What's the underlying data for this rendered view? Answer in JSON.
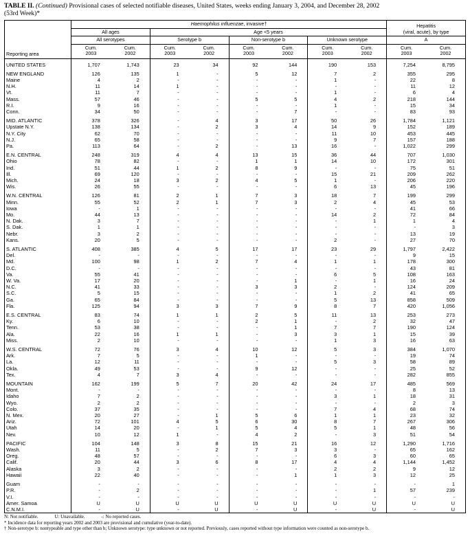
{
  "title": {
    "bold": "TABLE II.",
    "italic": "(Continued)",
    "rest": "Provisional cases of selected notifiable diseases, United States, weeks ending January 3, 2004, and December 28, 2002",
    "line2": "(53rd Week)*"
  },
  "columns": {
    "reporting_area": "Reporting area",
    "haemophilus_italic": "Haemophilus influenzae",
    "haemophilus_rest": ", invasive†",
    "hepatitis_line1": "Hepatitis",
    "hepatitis_line2": "(viral, acute), by type",
    "all_ages": "All ages",
    "age_under5": "Age <5 years",
    "all_serotypes": "All serotypes",
    "serotype_b": "Serotype b",
    "non_serotype_b": "Non-serotype b",
    "unknown_serotype": "Unknown serotype",
    "hep_a": "A",
    "cum_label": "Cum.",
    "year_2003": "2003",
    "year_2002": "2002"
  },
  "table": {
    "rows": [
      {
        "a": "UNITED STATES",
        "v": [
          "1,707",
          "1,743",
          "23",
          "34",
          "92",
          "144",
          "190",
          "153",
          "7,254",
          "8,795"
        ],
        "gap": true
      },
      {
        "a": "NEW ENGLAND",
        "v": [
          "126",
          "135",
          "1",
          "-",
          "5",
          "12",
          "7",
          "2",
          "355",
          "295"
        ],
        "gap": true
      },
      {
        "a": "Maine",
        "v": [
          "4",
          "2",
          "-",
          "-",
          "-",
          "-",
          "1",
          "-",
          "22",
          "8"
        ]
      },
      {
        "a": "N.H.",
        "v": [
          "11",
          "14",
          "1",
          "-",
          "-",
          "-",
          "-",
          "-",
          "11",
          "12"
        ]
      },
      {
        "a": "Vt.",
        "v": [
          "11",
          "7",
          "-",
          "-",
          "-",
          "-",
          "1",
          "-",
          "6",
          "4"
        ]
      },
      {
        "a": "Mass.",
        "v": [
          "57",
          "46",
          "-",
          "-",
          "5",
          "5",
          "4",
          "2",
          "218",
          "144"
        ]
      },
      {
        "a": "R.I.",
        "v": [
          "9",
          "16",
          "-",
          "-",
          "-",
          "-",
          "1",
          "-",
          "15",
          "34"
        ]
      },
      {
        "a": "Conn.",
        "v": [
          "34",
          "50",
          "-",
          "-",
          "-",
          "7",
          "-",
          "-",
          "83",
          "93"
        ]
      },
      {
        "a": "MID. ATLANTIC",
        "v": [
          "378",
          "326",
          "-",
          "4",
          "3",
          "17",
          "50",
          "26",
          "1,784",
          "1,121"
        ],
        "gap": true
      },
      {
        "a": "Upstate N.Y.",
        "v": [
          "138",
          "134",
          "-",
          "2",
          "3",
          "4",
          "14",
          "9",
          "152",
          "189"
        ]
      },
      {
        "a": "N.Y. City",
        "v": [
          "62",
          "70",
          "-",
          "-",
          "-",
          "-",
          "11",
          "10",
          "453",
          "445"
        ]
      },
      {
        "a": "N.J.",
        "v": [
          "65",
          "58",
          "-",
          "-",
          "-",
          "-",
          "9",
          "7",
          "157",
          "188"
        ]
      },
      {
        "a": "Pa.",
        "v": [
          "113",
          "64",
          "-",
          "2",
          "-",
          "13",
          "16",
          "-",
          "1,022",
          "299"
        ]
      },
      {
        "a": "E.N. CENTRAL",
        "v": [
          "248",
          "319",
          "4",
          "4",
          "13",
          "15",
          "36",
          "44",
          "707",
          "1,030"
        ],
        "gap": true
      },
      {
        "a": "Ohio",
        "v": [
          "78",
          "82",
          "-",
          "-",
          "1",
          "1",
          "14",
          "10",
          "172",
          "301"
        ]
      },
      {
        "a": "Ind.",
        "v": [
          "51",
          "44",
          "1",
          "2",
          "8",
          "9",
          "-",
          "-",
          "75",
          "51"
        ]
      },
      {
        "a": "Ill.",
        "v": [
          "69",
          "120",
          "-",
          "-",
          "-",
          "-",
          "15",
          "21",
          "209",
          "262"
        ]
      },
      {
        "a": "Mich.",
        "v": [
          "24",
          "18",
          "3",
          "2",
          "4",
          "5",
          "1",
          "-",
          "206",
          "220"
        ]
      },
      {
        "a": "Wis.",
        "v": [
          "26",
          "55",
          "-",
          "-",
          "-",
          "-",
          "6",
          "13",
          "45",
          "196"
        ]
      },
      {
        "a": "W.N. CENTRAL",
        "v": [
          "126",
          "81",
          "2",
          "1",
          "7",
          "3",
          "18",
          "7",
          "199",
          "299"
        ],
        "gap": true
      },
      {
        "a": "Minn.",
        "v": [
          "55",
          "52",
          "2",
          "1",
          "7",
          "3",
          "2",
          "4",
          "45",
          "53"
        ]
      },
      {
        "a": "Iowa",
        "v": [
          "-",
          "1",
          "-",
          "-",
          "-",
          "-",
          "-",
          "-",
          "41",
          "66"
        ]
      },
      {
        "a": "Mo.",
        "v": [
          "44",
          "13",
          "-",
          "-",
          "-",
          "-",
          "14",
          "2",
          "72",
          "84"
        ]
      },
      {
        "a": "N. Dak.",
        "v": [
          "3",
          "7",
          "-",
          "-",
          "-",
          "-",
          "-",
          "1",
          "1",
          "4"
        ]
      },
      {
        "a": "S. Dak.",
        "v": [
          "1",
          "1",
          "-",
          "-",
          "-",
          "-",
          "-",
          "-",
          "-",
          "3"
        ]
      },
      {
        "a": "Nebr.",
        "v": [
          "3",
          "2",
          "-",
          "-",
          "-",
          "-",
          "-",
          "-",
          "13",
          "19"
        ]
      },
      {
        "a": "Kans.",
        "v": [
          "20",
          "5",
          "-",
          "-",
          "-",
          "-",
          "2",
          "-",
          "27",
          "70"
        ]
      },
      {
        "a": "S. ATLANTIC",
        "v": [
          "408",
          "385",
          "4",
          "5",
          "17",
          "17",
          "23",
          "29",
          "1,797",
          "2,422"
        ],
        "gap": true
      },
      {
        "a": "Del.",
        "v": [
          "-",
          "-",
          "-",
          "-",
          "-",
          "-",
          "-",
          "-",
          "9",
          "15"
        ]
      },
      {
        "a": "Md.",
        "v": [
          "100",
          "98",
          "1",
          "2",
          "7",
          "4",
          "1",
          "1",
          "178",
          "300"
        ]
      },
      {
        "a": "D.C.",
        "v": [
          "-",
          "-",
          "-",
          "-",
          "-",
          "-",
          "-",
          "-",
          "43",
          "81"
        ]
      },
      {
        "a": "Va.",
        "v": [
          "55",
          "41",
          "-",
          "-",
          "-",
          "-",
          "6",
          "5",
          "108",
          "163"
        ]
      },
      {
        "a": "W. Va.",
        "v": [
          "17",
          "20",
          "-",
          "-",
          "-",
          "1",
          "-",
          "1",
          "16",
          "24"
        ]
      },
      {
        "a": "N.C.",
        "v": [
          "41",
          "33",
          "-",
          "-",
          "3",
          "3",
          "2",
          "-",
          "124",
          "209"
        ]
      },
      {
        "a": "S.C.",
        "v": [
          "5",
          "15",
          "-",
          "-",
          "-",
          "-",
          "1",
          "2",
          "41",
          "65"
        ]
      },
      {
        "a": "Ga.",
        "v": [
          "65",
          "84",
          "-",
          "-",
          "-",
          "-",
          "5",
          "13",
          "858",
          "509"
        ]
      },
      {
        "a": "Fla.",
        "v": [
          "125",
          "94",
          "3",
          "3",
          "7",
          "9",
          "8",
          "7",
          "420",
          "1,056"
        ]
      },
      {
        "a": "E.S. CENTRAL",
        "v": [
          "83",
          "74",
          "1",
          "1",
          "2",
          "5",
          "11",
          "13",
          "253",
          "273"
        ],
        "gap": true
      },
      {
        "a": "Ky.",
        "v": [
          "6",
          "10",
          "-",
          "-",
          "2",
          "1",
          "-",
          "2",
          "32",
          "47"
        ]
      },
      {
        "a": "Tenn.",
        "v": [
          "53",
          "38",
          "-",
          "-",
          "-",
          "1",
          "7",
          "7",
          "190",
          "124"
        ]
      },
      {
        "a": "Ala.",
        "v": [
          "22",
          "16",
          "1",
          "1",
          "-",
          "3",
          "3",
          "1",
          "15",
          "39"
        ]
      },
      {
        "a": "Miss.",
        "v": [
          "2",
          "10",
          "-",
          "-",
          "-",
          "-",
          "1",
          "3",
          "16",
          "63"
        ]
      },
      {
        "a": "W.S. CENTRAL",
        "v": [
          "72",
          "76",
          "3",
          "4",
          "10",
          "12",
          "5",
          "3",
          "384",
          "1,070"
        ],
        "gap": true
      },
      {
        "a": "Ark.",
        "v": [
          "7",
          "5",
          "-",
          "-",
          "1",
          "-",
          "-",
          "-",
          "19",
          "74"
        ]
      },
      {
        "a": "La.",
        "v": [
          "12",
          "11",
          "-",
          "-",
          "-",
          "-",
          "5",
          "3",
          "58",
          "89"
        ]
      },
      {
        "a": "Okla.",
        "v": [
          "49",
          "53",
          "-",
          "-",
          "9",
          "12",
          "-",
          "-",
          "25",
          "52"
        ]
      },
      {
        "a": "Tex.",
        "v": [
          "4",
          "7",
          "3",
          "4",
          "-",
          "-",
          "-",
          "-",
          "282",
          "855"
        ]
      },
      {
        "a": "MOUNTAIN",
        "v": [
          "162",
          "199",
          "5",
          "7",
          "20",
          "42",
          "24",
          "17",
          "485",
          "569"
        ],
        "gap": true
      },
      {
        "a": "Mont.",
        "v": [
          "-",
          "-",
          "-",
          "-",
          "-",
          "-",
          "-",
          "-",
          "8",
          "13"
        ]
      },
      {
        "a": "Idaho",
        "v": [
          "7",
          "2",
          "-",
          "-",
          "-",
          "-",
          "3",
          "1",
          "18",
          "31"
        ]
      },
      {
        "a": "Wyo.",
        "v": [
          "2",
          "2",
          "-",
          "-",
          "-",
          "-",
          "-",
          "-",
          "2",
          "3"
        ]
      },
      {
        "a": "Colo.",
        "v": [
          "37",
          "35",
          "-",
          "-",
          "-",
          "-",
          "7",
          "4",
          "68",
          "74"
        ]
      },
      {
        "a": "N. Mex.",
        "v": [
          "20",
          "27",
          "-",
          "1",
          "5",
          "6",
          "1",
          "1",
          "23",
          "32"
        ]
      },
      {
        "a": "Ariz.",
        "v": [
          "72",
          "101",
          "4",
          "5",
          "6",
          "30",
          "8",
          "7",
          "267",
          "306"
        ]
      },
      {
        "a": "Utah",
        "v": [
          "14",
          "20",
          "-",
          "1",
          "5",
          "4",
          "5",
          "1",
          "48",
          "56"
        ]
      },
      {
        "a": "Nev.",
        "v": [
          "10",
          "12",
          "1",
          "-",
          "4",
          "2",
          "-",
          "3",
          "51",
          "54"
        ]
      },
      {
        "a": "PACIFIC",
        "v": [
          "104",
          "148",
          "3",
          "8",
          "15",
          "21",
          "16",
          "12",
          "1,290",
          "1,716"
        ],
        "gap": true
      },
      {
        "a": "Wash.",
        "v": [
          "11",
          "5",
          "-",
          "2",
          "7",
          "3",
          "3",
          "-",
          "65",
          "162"
        ]
      },
      {
        "a": "Oreg.",
        "v": [
          "48",
          "57",
          "-",
          "-",
          "-",
          "-",
          "6",
          "3",
          "60",
          "65"
        ]
      },
      {
        "a": "Calif.",
        "v": [
          "20",
          "44",
          "3",
          "6",
          "8",
          "17",
          "4",
          "4",
          "1,144",
          "1,452"
        ]
      },
      {
        "a": "Alaska",
        "v": [
          "3",
          "2",
          "-",
          "-",
          "-",
          "-",
          "2",
          "2",
          "9",
          "12"
        ]
      },
      {
        "a": "Hawaii",
        "v": [
          "22",
          "40",
          "-",
          "-",
          "-",
          "1",
          "1",
          "3",
          "12",
          "25"
        ]
      },
      {
        "a": "Guam",
        "v": [
          "-",
          "-",
          "-",
          "-",
          "-",
          "-",
          "-",
          "-",
          "-",
          "1"
        ],
        "gap": true
      },
      {
        "a": "P.R.",
        "v": [
          "-",
          "2",
          "-",
          "-",
          "-",
          "-",
          "-",
          "1",
          "57",
          "239"
        ]
      },
      {
        "a": "V.I.",
        "v": [
          "-",
          "-",
          "-",
          "-",
          "-",
          "-",
          "-",
          "-",
          "-",
          "-"
        ]
      },
      {
        "a": "Amer. Samoa",
        "v": [
          "U",
          "U",
          "U",
          "U",
          "U",
          "U",
          "U",
          "U",
          "U",
          "U"
        ]
      },
      {
        "a": "C.N.M.I.",
        "v": [
          "-",
          "U",
          "-",
          "U",
          "-",
          "U",
          "-",
          "U",
          "-",
          "U"
        ]
      }
    ]
  },
  "footnotes": {
    "legend_n": "N: Not notifiable.",
    "legend_u": "U: Unavailable.",
    "legend_dash": "-: No reported cases.",
    "note_star": "* Incidence data for reporting years 2002 and 2003 are provisional and cumulative (year-to-date).",
    "note_dagger": "† Non-serotype b: nontypeable and type other than b; Unknown serotype: type unknown or not reported. Previously, cases reported without type information were counted as non-serotype b."
  }
}
